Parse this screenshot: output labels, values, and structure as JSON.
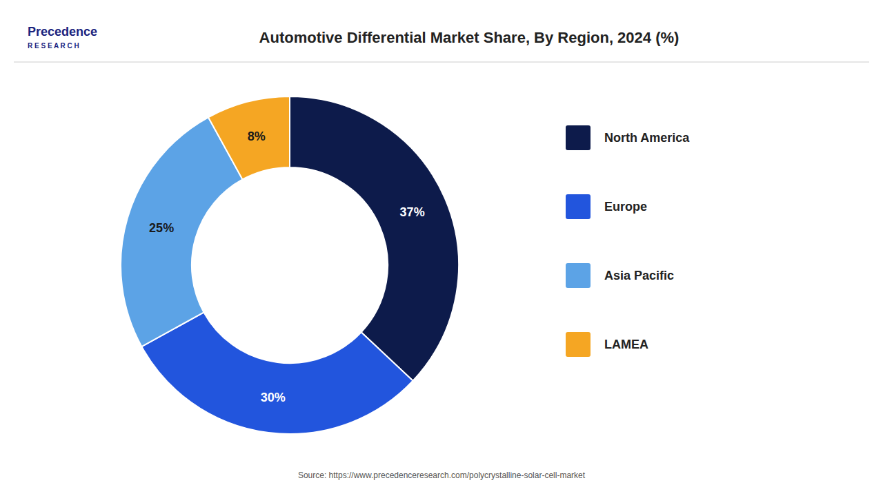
{
  "chart_data": {
    "type": "donut",
    "title": "Automotive Differential Market Share, By Region, 2024 (%)",
    "categories": [
      "North America",
      "Europe",
      "Asia Pacific",
      "LAMEA"
    ],
    "values": [
      37,
      30,
      25,
      8
    ],
    "value_labels": [
      "37%",
      "30%",
      "25%",
      "8%"
    ],
    "colors": [
      "#0d1b4b",
      "#2255dd",
      "#5ca3e6",
      "#f5a623"
    ],
    "data_labels": true,
    "legend": "right",
    "source": "Source: https://www.precedenceresearch.com/polycrystalline-solar-cell-market",
    "annotations": [
      "Precedence",
      "R E S E A R C H"
    ]
  }
}
